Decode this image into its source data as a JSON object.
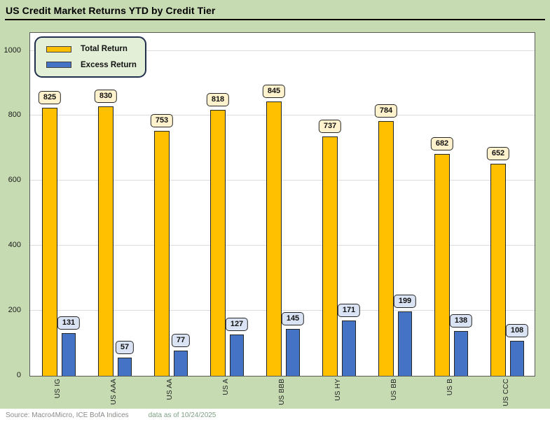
{
  "title": "US Credit Market Returns YTD by Credit Tier",
  "source": {
    "label": "Source: Macro4Micro, ICE BofA Indices",
    "asof": "data as of 10/24/2025"
  },
  "legend": {
    "position": "top-left",
    "items": [
      {
        "label": "Total Return",
        "color": "#FFC000"
      },
      {
        "label": "Excess Return",
        "color": "#4472C4"
      }
    ]
  },
  "y_axis": {
    "ticks": [
      0,
      200,
      400,
      600,
      800,
      1000
    ]
  },
  "chart_data": {
    "type": "bar",
    "title": "US Credit Market Returns YTD by Credit Tier",
    "categories": [
      "US IG",
      "US AAA",
      "US AA",
      "US A",
      "US BBB",
      "US HY",
      "US BB",
      "US B",
      "US CCC"
    ],
    "series": [
      {
        "name": "Total Return",
        "color": "#FFC000",
        "label_fill": "#FFF2CC",
        "values": [
          825,
          830,
          753,
          818,
          845,
          737,
          784,
          682,
          652
        ]
      },
      {
        "name": "Excess Return",
        "color": "#4472C4",
        "label_fill": "#DAE3F3",
        "values": [
          131,
          57,
          77,
          127,
          145,
          171,
          199,
          138,
          108
        ]
      }
    ],
    "xlabel": "",
    "ylabel": "",
    "yticks": [
      0,
      200,
      400,
      600,
      800,
      1000
    ],
    "ylim": [
      0,
      1055
    ],
    "grid": true,
    "data_labels": true,
    "legend_position": "top-left"
  },
  "colors": {
    "background": "#C7DBB3",
    "plot_background": "#FFFFFF",
    "plot_border": "#595959",
    "gridline": "#DCDCDC",
    "legend_fill": "#E4EFD8",
    "legend_border": "#22304E",
    "total_return_bar": "#FFC000",
    "excess_return_bar": "#4472C4",
    "total_label_fill": "#FFF2CC",
    "excess_label_fill": "#DAE3F3",
    "bar_border": "#262626",
    "title_color": "#000000",
    "source_color": "#8A8A86",
    "asof_color": "#7FA184"
  }
}
